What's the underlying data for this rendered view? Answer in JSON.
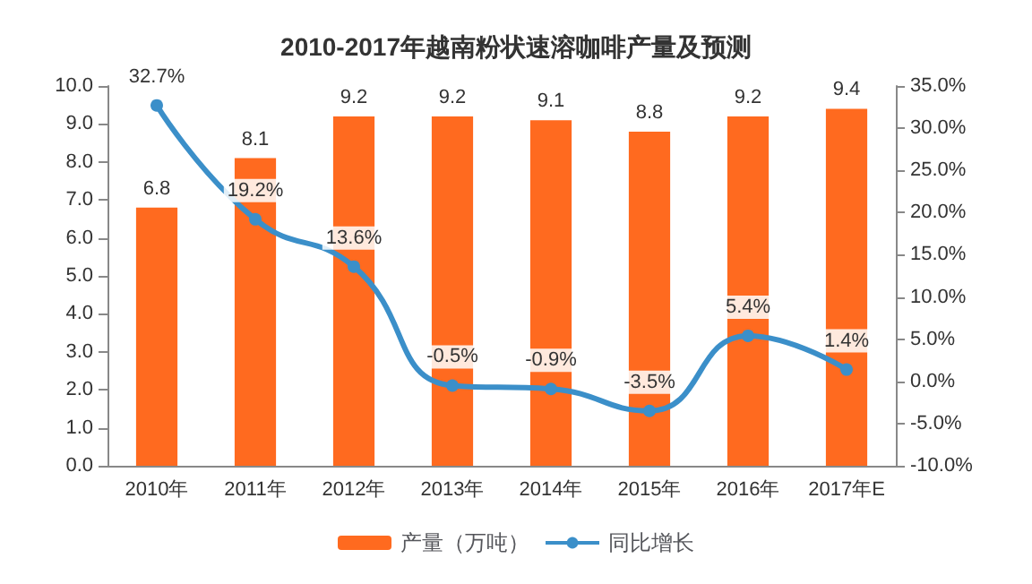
{
  "chart_data": {
    "type": "bar",
    "title": "2010-2017年越南粉状速溶咖啡产量及预测",
    "categories": [
      "2010年",
      "2011年",
      "2012年",
      "2013年",
      "2014年",
      "2015年",
      "2016年",
      "2017年E"
    ],
    "series": [
      {
        "name": "产量（万吨）",
        "color": "#ff6a1f",
        "values": [
          6.8,
          8.1,
          9.2,
          9.2,
          9.1,
          8.8,
          9.2,
          9.4
        ]
      },
      {
        "name": "同比增长",
        "type": "line",
        "axis": "y2",
        "color": "#3b8fc9",
        "values": [
          32.7,
          19.2,
          13.6,
          -0.5,
          -0.9,
          -3.5,
          5.4,
          1.4
        ],
        "value_labels": [
          "32.7%",
          "19.2%",
          "13.6%",
          "-0.5%",
          "-0.9%",
          "-3.5%",
          "5.4%",
          "1.4%"
        ]
      }
    ],
    "ylim": [
      0,
      10
    ],
    "yticks": [
      {
        "value": 0,
        "label": "0.0"
      },
      {
        "value": 1,
        "label": "1.0"
      },
      {
        "value": 2,
        "label": "2.0"
      },
      {
        "value": 3,
        "label": "3.0"
      },
      {
        "value": 4,
        "label": "4.0"
      },
      {
        "value": 5,
        "label": "5.0"
      },
      {
        "value": 6,
        "label": "6.0"
      },
      {
        "value": 7,
        "label": "7.0"
      },
      {
        "value": 8,
        "label": "8.0"
      },
      {
        "value": 9,
        "label": "9.0"
      },
      {
        "value": 10,
        "label": "10.0"
      }
    ],
    "y2lim": [
      -10,
      35
    ],
    "y2ticks": [
      {
        "value": -10,
        "label": "-10.0%"
      },
      {
        "value": -5,
        "label": "-5.0%"
      },
      {
        "value": 0,
        "label": "0.0%"
      },
      {
        "value": 5,
        "label": "5.0%"
      },
      {
        "value": 10,
        "label": "10.0%"
      },
      {
        "value": 15,
        "label": "15.0%"
      },
      {
        "value": 20,
        "label": "20.0%"
      },
      {
        "value": 25,
        "label": "25.0%"
      },
      {
        "value": 30,
        "label": "30.0%"
      },
      {
        "value": 35,
        "label": "35.0%"
      }
    ],
    "data_labels": true,
    "legend": "bottom",
    "marker": "circle",
    "grid": false
  }
}
